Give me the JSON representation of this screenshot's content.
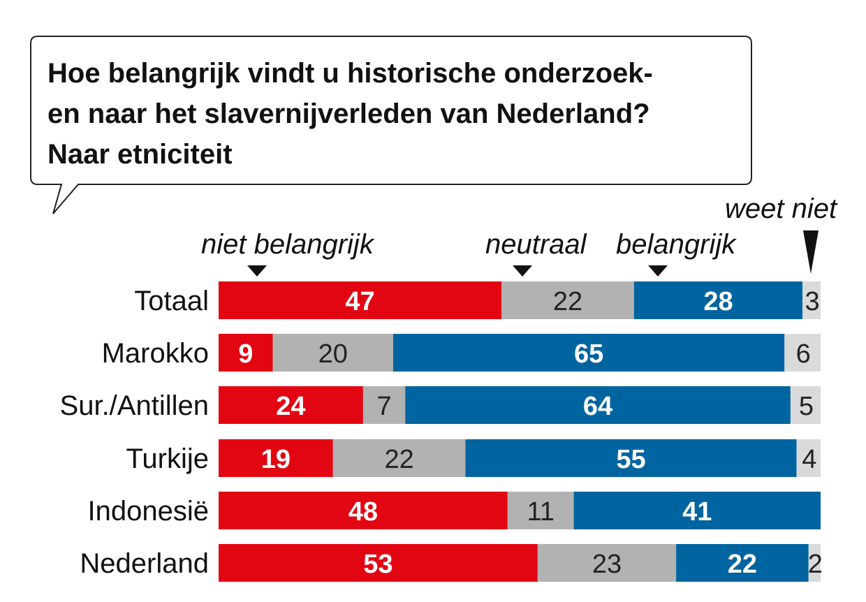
{
  "chart_data": {
    "type": "bar",
    "stacked": true,
    "orientation": "horizontal",
    "title_lines": [
      "Hoe belangrijk vindt u historische onderzoek-",
      "en naar het slavernijverleden van Nederland?",
      "Naar etniciteit"
    ],
    "categories": [
      "Totaal",
      "Marokko",
      "Sur./Antillen",
      "Turkije",
      "Indonesië",
      "Nederland"
    ],
    "series": [
      {
        "name": "niet belangrijk",
        "color": "#e20613",
        "values": [
          47,
          9,
          24,
          19,
          48,
          53
        ]
      },
      {
        "name": "neutraal",
        "color": "#b2b2b2",
        "values": [
          22,
          20,
          7,
          22,
          11,
          23
        ]
      },
      {
        "name": "belangrijk",
        "color": "#0064a0",
        "values": [
          28,
          65,
          64,
          55,
          41,
          22
        ]
      },
      {
        "name": "weet niet",
        "color": "#dadada",
        "values": [
          3,
          6,
          5,
          4,
          0,
          2
        ]
      }
    ],
    "unit": "%"
  }
}
